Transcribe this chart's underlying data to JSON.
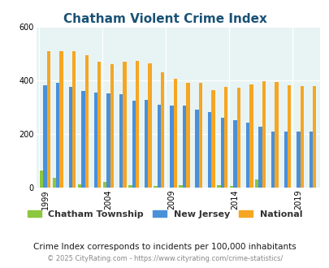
{
  "title": "Chatham Violent Crime Index",
  "title_color": "#1a5276",
  "subtitle": "Crime Index corresponds to incidents per 100,000 inhabitants",
  "footer": "© 2025 CityRating.com - https://www.cityrating.com/crime-statistics/",
  "years": [
    1999,
    2000,
    2001,
    2002,
    2003,
    2004,
    2005,
    2006,
    2007,
    2008,
    2009,
    2010,
    2011,
    2012,
    2013,
    2014,
    2015,
    2016,
    2017,
    2018,
    2019,
    2020
  ],
  "chatham": [
    65,
    35,
    0,
    12,
    0,
    22,
    0,
    10,
    0,
    5,
    0,
    10,
    0,
    0,
    8,
    5,
    0,
    30,
    0,
    0,
    0,
    0
  ],
  "new_jersey": [
    383,
    392,
    375,
    362,
    355,
    352,
    347,
    325,
    328,
    310,
    305,
    305,
    290,
    283,
    262,
    253,
    242,
    228,
    210,
    210,
    210,
    210
  ],
  "national": [
    508,
    510,
    510,
    494,
    470,
    460,
    469,
    474,
    465,
    430,
    405,
    390,
    390,
    365,
    375,
    372,
    385,
    398,
    395,
    383,
    378,
    378
  ],
  "chatham_color": "#8dc63f",
  "nj_color": "#4a90d9",
  "national_color": "#f5a623",
  "bg_color": "#e8f4f4",
  "ylim": [
    0,
    600
  ],
  "yticks": [
    0,
    200,
    400,
    600
  ],
  "bar_width": 0.28,
  "legend_labels": [
    "Chatham Township",
    "New Jersey",
    "National"
  ],
  "subtitle_color": "#1a1a1a",
  "footer_color": "#888888"
}
